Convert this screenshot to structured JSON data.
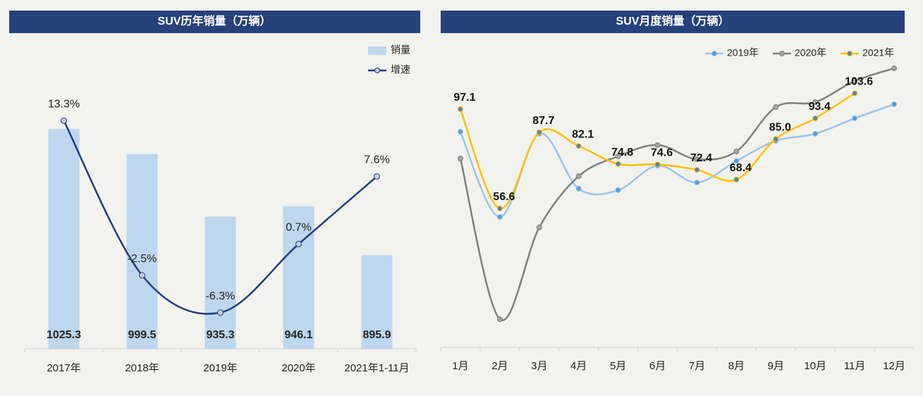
{
  "chart_data": [
    {
      "type": "combo",
      "title": "SUV历年销量（万辆）",
      "categories": [
        "2017年",
        "2018年",
        "2019年",
        "2020年",
        "2021年1-11月"
      ],
      "series": [
        {
          "name": "销量",
          "type": "bar",
          "color": "#bdd7ee",
          "values": [
            1025.3,
            999.5,
            935.3,
            946.1,
            895.9
          ]
        },
        {
          "name": "增速",
          "type": "line",
          "axis": "y2",
          "color": "#223d77",
          "values": [
            13.3,
            -2.5,
            -6.3,
            0.7,
            7.6
          ],
          "value_labels": [
            "13.3%",
            "-2.5%",
            "-6.3%",
            "0.7%",
            "7.6%"
          ]
        }
      ],
      "ylim": [
        800,
        1114
      ],
      "y2lim": [
        -10,
        21.3
      ],
      "legend": "top-right"
    },
    {
      "type": "line",
      "title": "SUV月度销量（万辆）",
      "categories": [
        "1月",
        "2月",
        "3月",
        "4月",
        "5月",
        "6月",
        "7月",
        "8月",
        "9月",
        "10月",
        "11月",
        "12月"
      ],
      "series": [
        {
          "name": "2019年",
          "color": "#9dc3e6",
          "marker": "#5b9bd5",
          "values": [
            87.9,
            53.2,
            87.1,
            64.7,
            64.1,
            74.1,
            67.2,
            76.0,
            84.2,
            87.1,
            93.4,
            99.1
          ]
        },
        {
          "name": "2020年",
          "color": "#7f7f7f",
          "marker": "#a5a5a5",
          "values": [
            77.0,
            11.5,
            48.9,
            69.8,
            77.9,
            82.5,
            76.7,
            79.9,
            98.0,
            100.0,
            108.6,
            113.8
          ]
        },
        {
          "name": "2021年",
          "color": "#ffc000",
          "marker": "#4f81bd",
          "values": [
            97.1,
            56.6,
            87.7,
            82.1,
            74.8,
            74.6,
            72.4,
            68.4,
            85.0,
            93.4,
            103.6,
            null
          ],
          "value_labels": [
            "97.1",
            "56.6",
            "87.7",
            "82.1",
            "74.8",
            "74.6",
            "72.4",
            "68.4",
            "85.0",
            "93.4",
            "103.6",
            null
          ],
          "labeled": true
        }
      ],
      "ylim": [
        0,
        124.4
      ],
      "legend": "top-right"
    }
  ]
}
